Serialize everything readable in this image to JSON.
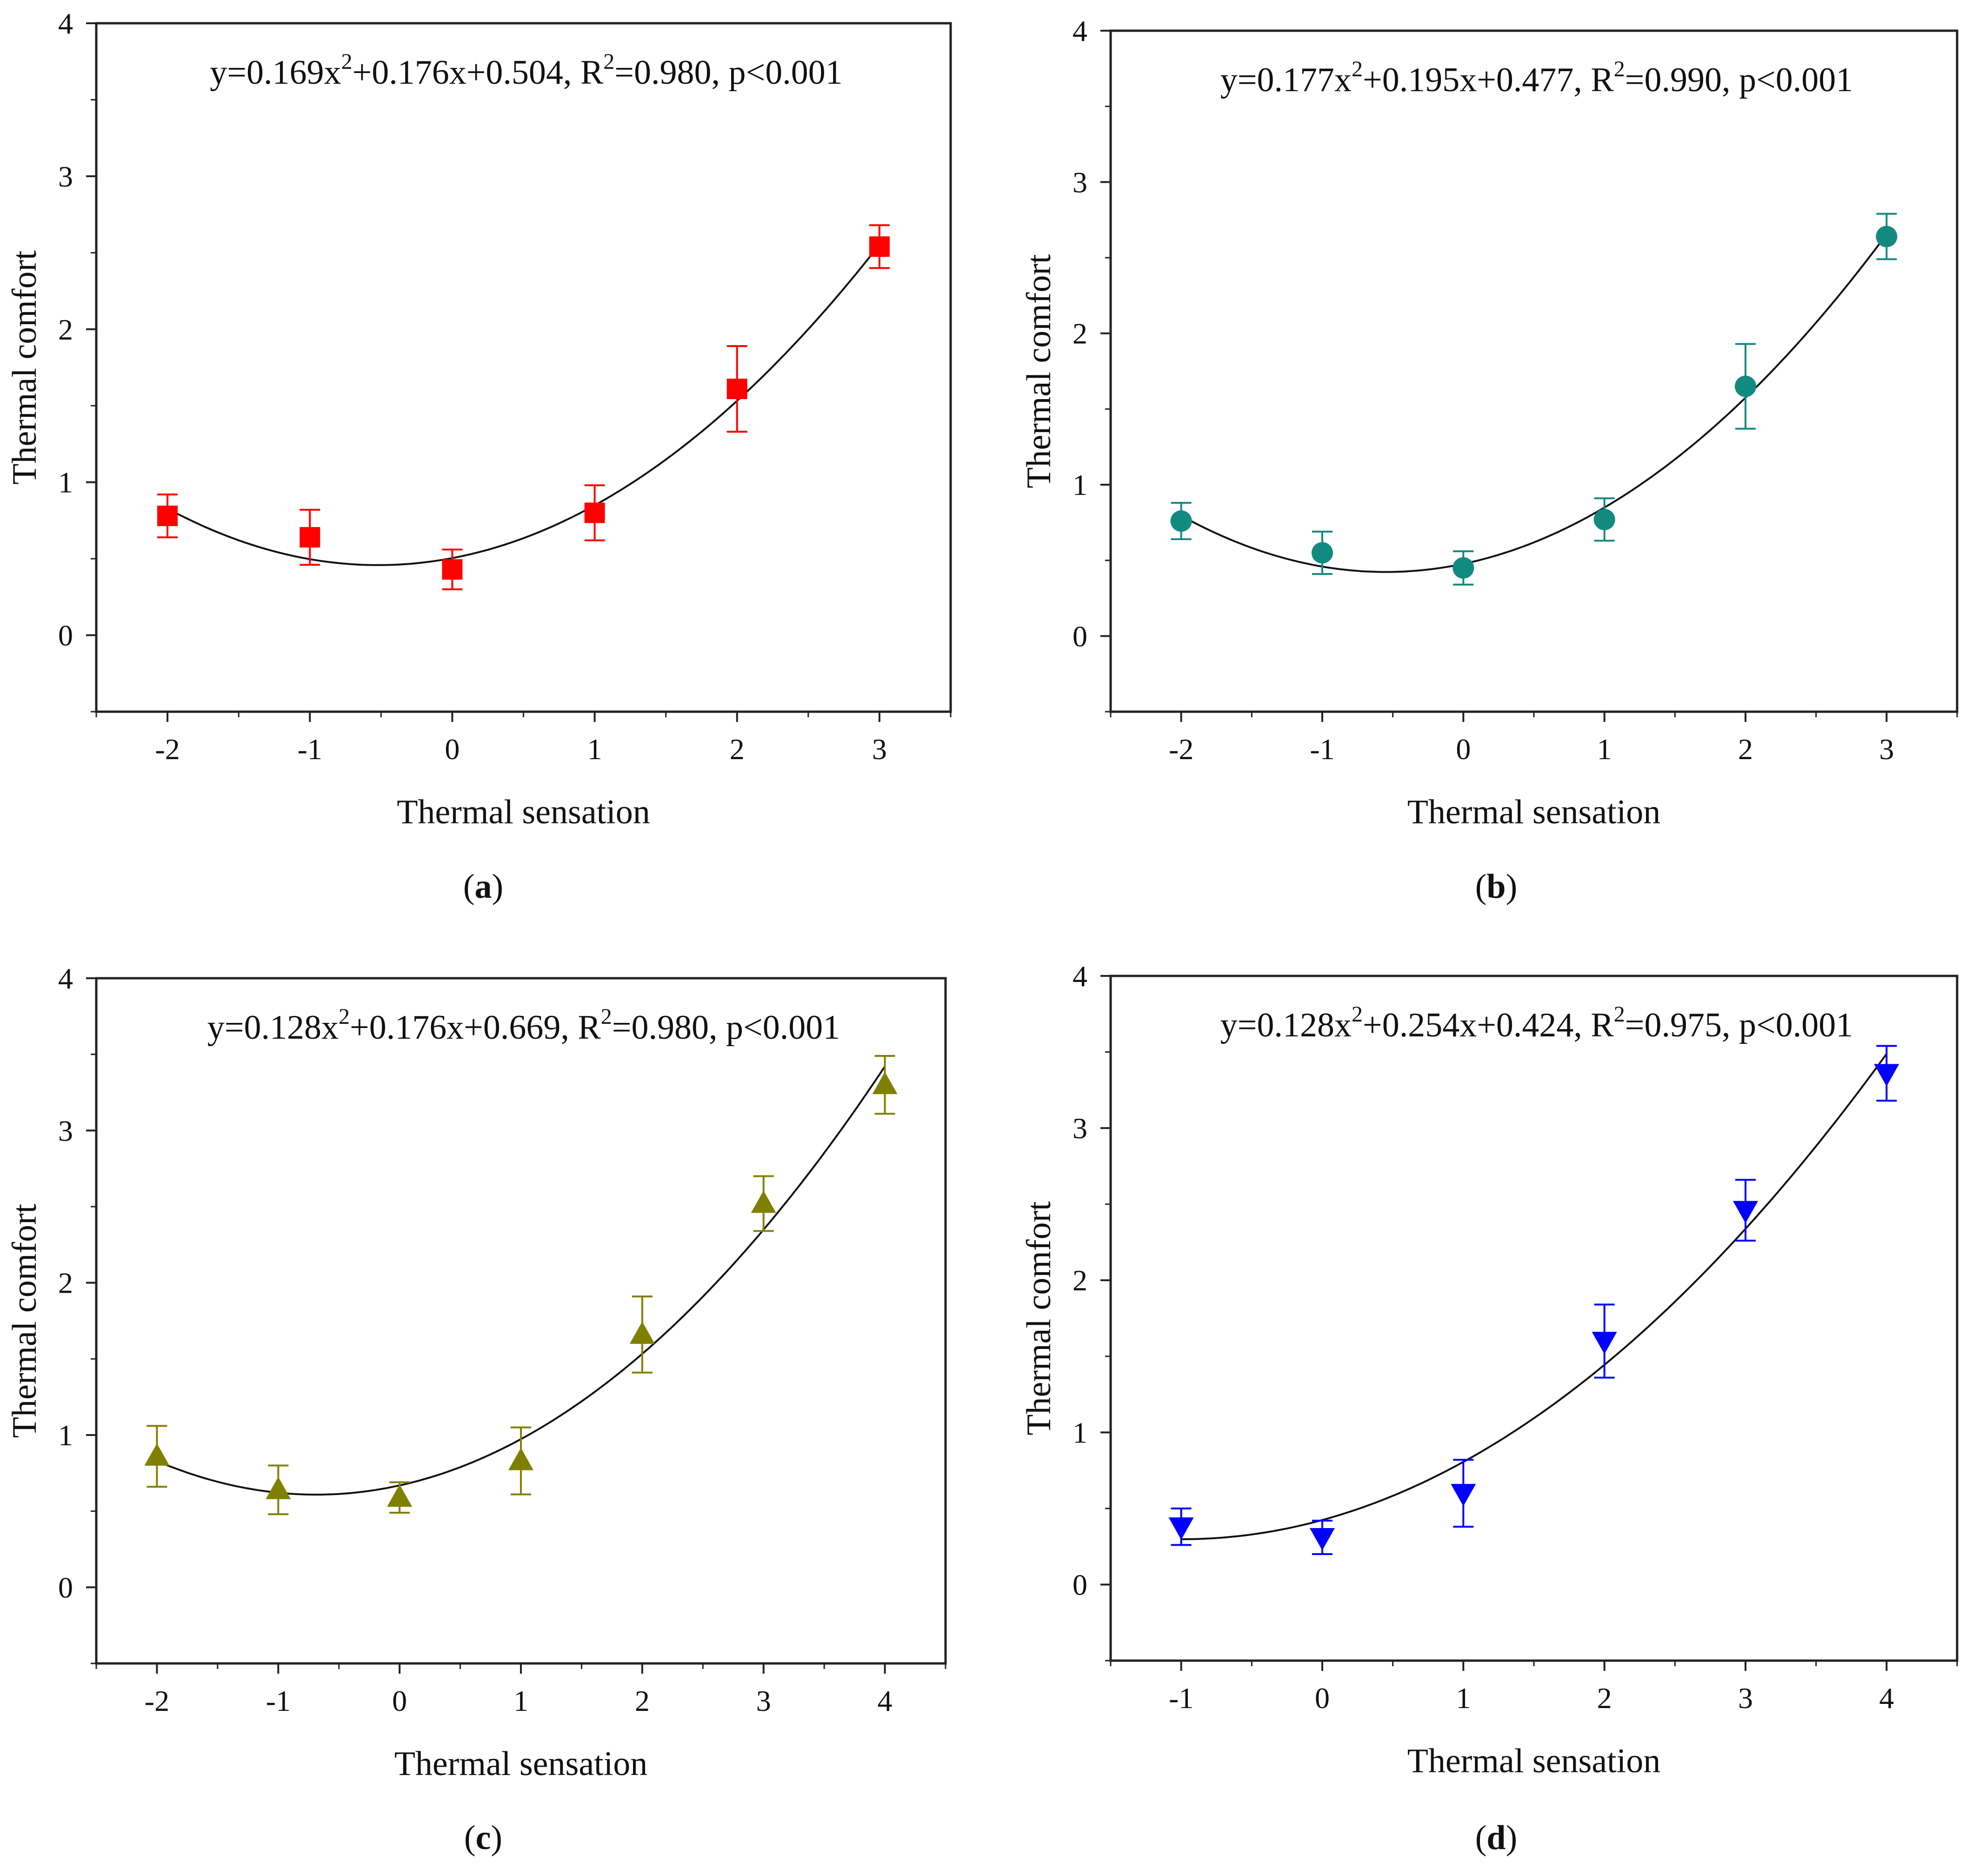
{
  "chart_data": [
    {
      "type": "scatter",
      "panel_label": "a",
      "equation": {
        "y": "y=0.169x",
        "lin": "+0.176x+0.504, R",
        "rest": "=0.980, p<0.001"
      },
      "fit": {
        "a": 0.169,
        "b": 0.176,
        "c": 0.504
      },
      "xlabel": "Thermal sensation",
      "ylabel": "Thermal comfort",
      "xlim": [
        -2.5,
        3.5
      ],
      "ylim": [
        -0.5,
        4
      ],
      "xticks": [
        -2,
        -1,
        0,
        1,
        2,
        3
      ],
      "yticks": [
        0,
        1,
        2,
        3,
        4
      ],
      "marker": "square",
      "color": "#ff0000",
      "points": [
        {
          "x": -2,
          "y": 0.78,
          "err": 0.14
        },
        {
          "x": -1,
          "y": 0.64,
          "err": 0.18
        },
        {
          "x": 0,
          "y": 0.43,
          "err": 0.13
        },
        {
          "x": 1,
          "y": 0.8,
          "err": 0.18
        },
        {
          "x": 2,
          "y": 1.61,
          "err": 0.28
        },
        {
          "x": 3,
          "y": 2.54,
          "err": 0.14
        }
      ]
    },
    {
      "type": "scatter",
      "panel_label": "b",
      "equation": {
        "y": "y=0.177x",
        "lin": "+0.195x+0.477, R",
        "rest": "=0.990, p<0.001"
      },
      "fit": {
        "a": 0.177,
        "b": 0.195,
        "c": 0.477
      },
      "xlabel": "Thermal sensation",
      "ylabel": "Thermal comfort",
      "xlim": [
        -2.5,
        3.5
      ],
      "ylim": [
        -0.5,
        4
      ],
      "xticks": [
        -2,
        -1,
        0,
        1,
        2,
        3
      ],
      "yticks": [
        0,
        1,
        2,
        3,
        4
      ],
      "marker": "circle",
      "color": "#138a7f",
      "points": [
        {
          "x": -2,
          "y": 0.76,
          "err": 0.12
        },
        {
          "x": -1,
          "y": 0.55,
          "err": 0.14
        },
        {
          "x": 0,
          "y": 0.45,
          "err": 0.11
        },
        {
          "x": 1,
          "y": 0.77,
          "err": 0.14
        },
        {
          "x": 2,
          "y": 1.65,
          "err": 0.28
        },
        {
          "x": 3,
          "y": 2.64,
          "err": 0.15
        }
      ]
    },
    {
      "type": "scatter",
      "panel_label": "c",
      "equation": {
        "y": "y=0.128x",
        "lin": "+0.176x+0.669, R",
        "rest": "=0.980, p<0.001"
      },
      "fit": {
        "a": 0.128,
        "b": 0.176,
        "c": 0.669
      },
      "xlabel": "Thermal sensation",
      "ylabel": "Thermal comfort",
      "xlim": [
        -2.5,
        4.5
      ],
      "ylim": [
        -0.5,
        4
      ],
      "xticks": [
        -2,
        -1,
        0,
        1,
        2,
        3,
        4
      ],
      "yticks": [
        0,
        1,
        2,
        3,
        4
      ],
      "marker": "triangle-up",
      "color": "#808000",
      "points": [
        {
          "x": -2,
          "y": 0.86,
          "err": 0.2
        },
        {
          "x": -1,
          "y": 0.64,
          "err": 0.16
        },
        {
          "x": 0,
          "y": 0.59,
          "err": 0.1
        },
        {
          "x": 1,
          "y": 0.83,
          "err": 0.22
        },
        {
          "x": 2,
          "y": 1.66,
          "err": 0.25
        },
        {
          "x": 3,
          "y": 2.52,
          "err": 0.18
        },
        {
          "x": 4,
          "y": 3.3,
          "err": 0.19
        }
      ]
    },
    {
      "type": "scatter",
      "panel_label": "d",
      "equation": {
        "y": "y=0.128x",
        "lin": "+0.254x+0.424, R",
        "rest": "=0.975, p<0.001"
      },
      "fit": {
        "a": 0.128,
        "b": 0.254,
        "c": 0.424
      },
      "xlabel": "Thermal sensation",
      "ylabel": "Thermal comfort",
      "xlim": [
        -1.5,
        4.5
      ],
      "ylim": [
        -0.5,
        4
      ],
      "xticks": [
        -1,
        0,
        1,
        2,
        3,
        4
      ],
      "yticks": [
        0,
        1,
        2,
        3,
        4
      ],
      "marker": "triangle-down",
      "color": "#0000ff",
      "points": [
        {
          "x": -1,
          "y": 0.38,
          "err": 0.12
        },
        {
          "x": 0,
          "y": 0.31,
          "err": 0.11
        },
        {
          "x": 1,
          "y": 0.6,
          "err": 0.22
        },
        {
          "x": 2,
          "y": 1.6,
          "err": 0.24
        },
        {
          "x": 3,
          "y": 2.46,
          "err": 0.2
        },
        {
          "x": 4,
          "y": 3.36,
          "err": 0.18
        }
      ]
    }
  ]
}
